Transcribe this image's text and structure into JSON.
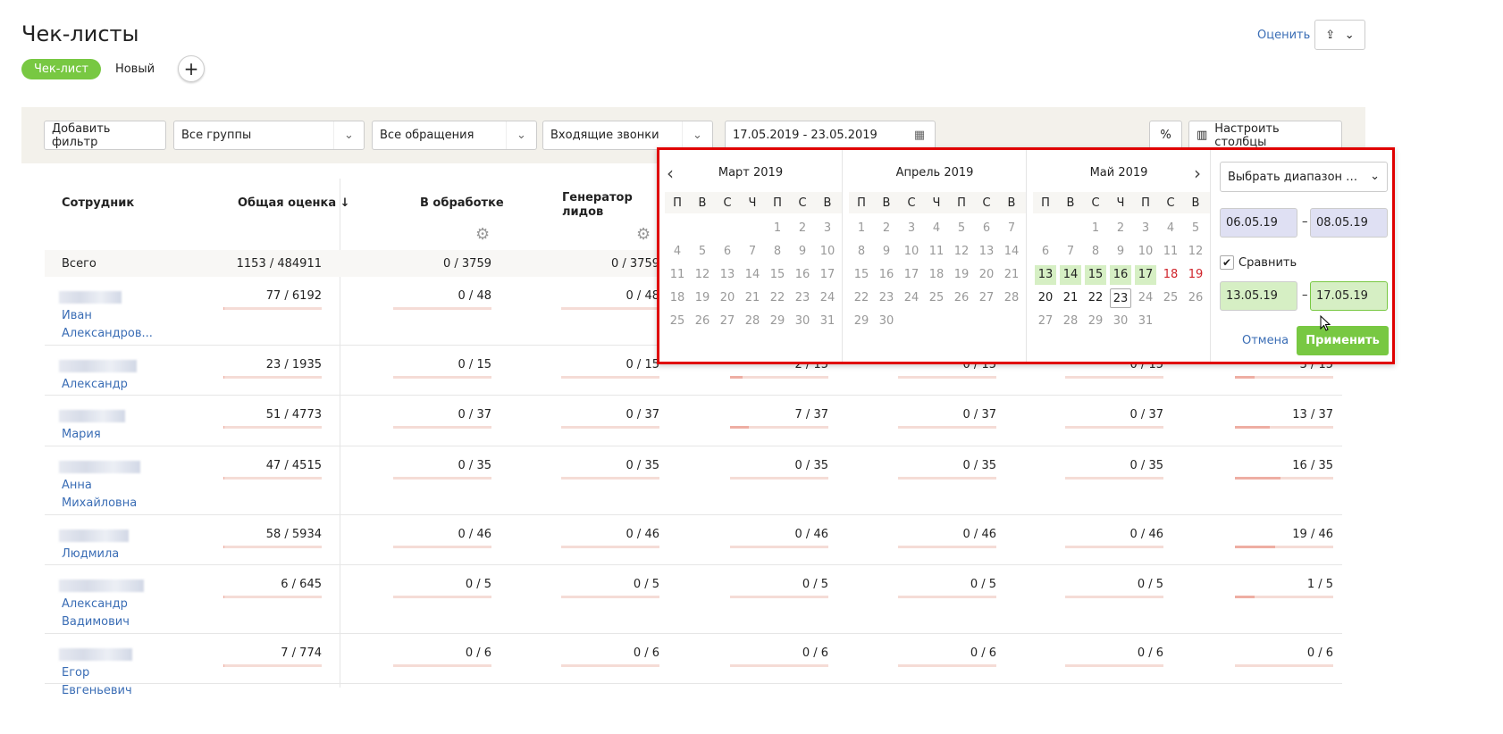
{
  "page": {
    "title": "Чек-листы",
    "tabs": [
      {
        "label": "Чек-лист",
        "active": true
      },
      {
        "label": "Новый"
      }
    ],
    "add_icon": "plus-icon",
    "rate_label": "Оценить",
    "export_icon": "share-icon"
  },
  "filters": {
    "add_filter": "Добавить фильтр",
    "groups": "Все группы",
    "requests": "Все обращения",
    "calls": "Входящие звонки",
    "date_range": "17.05.2019 - 23.05.2019",
    "percent": "%",
    "columns": "Настроить столбцы"
  },
  "table": {
    "headers": [
      "Сотрудник",
      "Общая оценка",
      "В обработке",
      "Генератор лидов"
    ],
    "sort_icon": "arrow-down-icon",
    "total": {
      "label": "Всего",
      "values": [
        "1153 / 484911",
        "0 / 3759",
        "0 / 3759"
      ]
    },
    "rows": [
      {
        "name": "Иван Александров...",
        "values": [
          "77 / 6192",
          "0 / 48",
          "0 / 48"
        ],
        "fills": [
          0.01,
          0,
          0
        ]
      },
      {
        "name": "Александр",
        "values": [
          "23 / 1935",
          "0 / 15",
          "0 / 15",
          "2 / 15",
          "0 / 15",
          "0 / 15",
          "3 / 15"
        ],
        "fills": [
          0.01,
          0,
          0,
          0.13,
          0,
          0,
          0.2
        ]
      },
      {
        "name": "Мария",
        "values": [
          "51 / 4773",
          "0 / 37",
          "0 / 37",
          "7 / 37",
          "0 / 37",
          "0 / 37",
          "13 / 37"
        ],
        "fills": [
          0.01,
          0,
          0,
          0.19,
          0,
          0,
          0.35
        ]
      },
      {
        "name": "Анна Михайловна",
        "values": [
          "47 / 4515",
          "0 / 35",
          "0 / 35",
          "0 / 35",
          "0 / 35",
          "0 / 35",
          "16 / 35"
        ],
        "fills": [
          0.01,
          0,
          0,
          0,
          0,
          0,
          0.46
        ]
      },
      {
        "name": "Людмила",
        "values": [
          "58 / 5934",
          "0 / 46",
          "0 / 46",
          "0 / 46",
          "0 / 46",
          "0 / 46",
          "19 / 46"
        ],
        "fills": [
          0.01,
          0,
          0,
          0,
          0,
          0,
          0.41
        ]
      },
      {
        "name": "Александр Вадимович",
        "values": [
          "6 / 645",
          "0 / 5",
          "0 / 5",
          "0 / 5",
          "0 / 5",
          "0 / 5",
          "1 / 5"
        ],
        "fills": [
          0.01,
          0,
          0,
          0,
          0,
          0,
          0.2
        ]
      },
      {
        "name": "Егор Евгеньевич",
        "values": [
          "7 / 774",
          "0 / 6",
          "0 / 6",
          "0 / 6",
          "0 / 6",
          "0 / 6",
          "0 / 6"
        ],
        "fills": [
          0.01,
          0,
          0,
          0,
          0,
          0,
          0
        ]
      }
    ]
  },
  "calendar": {
    "weekdays": [
      "П",
      "В",
      "С",
      "Ч",
      "П",
      "С",
      "В"
    ],
    "months": [
      {
        "title": "Март 2019",
        "offset": 4,
        "days": 31
      },
      {
        "title": "Апрель 2019",
        "offset": 0,
        "days": 30
      },
      {
        "title": "Май 2019",
        "offset": 2,
        "days": 31,
        "selected": [
          13,
          14,
          15,
          16,
          17
        ],
        "weekend_red": [
          18,
          19
        ],
        "current": [
          20,
          21,
          22
        ],
        "today": 23
      }
    ],
    "range_select": "Выбрать диапазон д...",
    "from": "06.05.19",
    "to": "08.05.19",
    "compare_label": "Сравнить",
    "compare_checked": true,
    "compare_from": "13.05.19",
    "compare_to": "17.05.19",
    "dash": "–",
    "cancel": "Отмена",
    "apply": "Применить",
    "colors": {
      "accent": "#78c842",
      "range1": "#dfe0f3",
      "range2": "#d6efc4"
    }
  }
}
